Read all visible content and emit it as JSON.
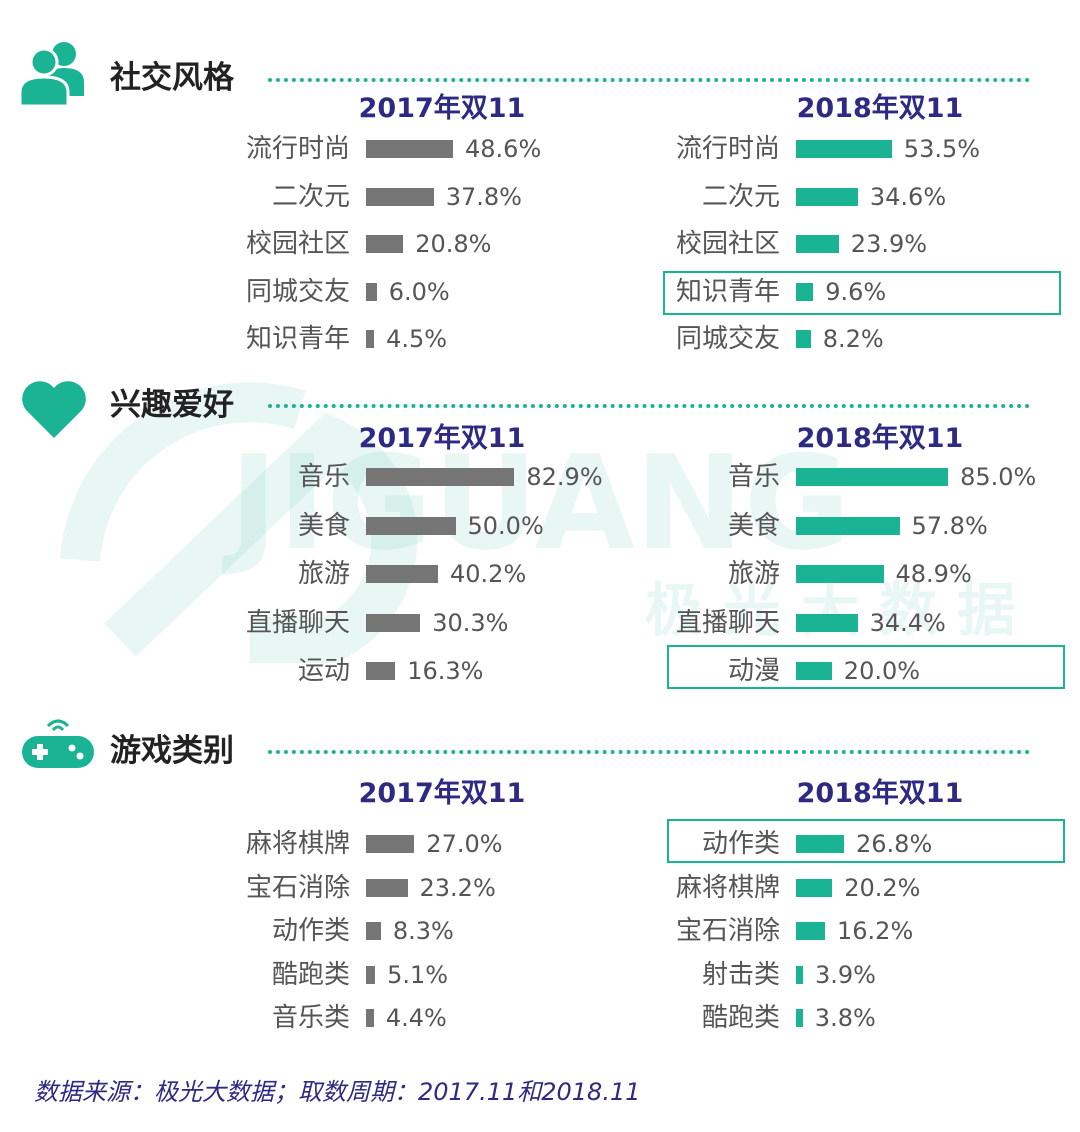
{
  "colors": {
    "teal": "#1ab394",
    "gray": "#757575",
    "heading": "#2e2a84",
    "title": "#222222"
  },
  "watermark": {
    "brand": "JIGUANG",
    "subtitle": "极 光 大 数 据"
  },
  "footer": "数据来源：极光大数据；取数周期：2017.11和2018.11",
  "chart_data": [
    {
      "type": "bar",
      "title": "社交风格",
      "icon": "users-icon",
      "xlim": [
        0,
        100
      ],
      "columns": [
        {
          "heading": "2017年双11",
          "categories": [
            "流行时尚",
            "二次元",
            "校园社区",
            "同城交友",
            "知识青年"
          ],
          "values": [
            48.6,
            37.8,
            20.8,
            6.0,
            4.5
          ],
          "labels": [
            "48.6%",
            "37.8%",
            "20.8%",
            "6.0%",
            "4.5%"
          ],
          "color": "#757575",
          "highlight": null
        },
        {
          "heading": "2018年双11",
          "categories": [
            "流行时尚",
            "二次元",
            "校园社区",
            "知识青年",
            "同城交友"
          ],
          "values": [
            53.5,
            34.6,
            23.9,
            9.6,
            8.2
          ],
          "labels": [
            "53.5%",
            "34.6%",
            "23.9%",
            "9.6%",
            "8.2%"
          ],
          "color": "#1ab394",
          "highlight": "知识青年"
        }
      ]
    },
    {
      "type": "bar",
      "title": "兴趣爱好",
      "icon": "heart-icon",
      "xlim": [
        0,
        100
      ],
      "columns": [
        {
          "heading": "2017年双11",
          "categories": [
            "音乐",
            "美食",
            "旅游",
            "直播聊天",
            "运动"
          ],
          "values": [
            82.9,
            50.0,
            40.2,
            30.3,
            16.3
          ],
          "labels": [
            "82.9%",
            "50.0%",
            "40.2%",
            "30.3%",
            "16.3%"
          ],
          "color": "#757575",
          "highlight": null
        },
        {
          "heading": "2018年双11",
          "categories": [
            "音乐",
            "美食",
            "旅游",
            "直播聊天",
            "动漫"
          ],
          "values": [
            85.0,
            57.8,
            48.9,
            34.4,
            20.0
          ],
          "labels": [
            "85.0%",
            "57.8%",
            "48.9%",
            "34.4%",
            "20.0%"
          ],
          "color": "#1ab394",
          "highlight": "动漫"
        }
      ]
    },
    {
      "type": "bar",
      "title": "游戏类别",
      "icon": "gamepad-icon",
      "xlim": [
        0,
        100
      ],
      "columns": [
        {
          "heading": "2017年双11",
          "categories": [
            "麻将棋牌",
            "宝石消除",
            "动作类",
            "酷跑类",
            "音乐类"
          ],
          "values": [
            27.0,
            23.2,
            8.3,
            5.1,
            4.4
          ],
          "labels": [
            "27.0%",
            "23.2%",
            "8.3%",
            "5.1%",
            "4.4%"
          ],
          "color": "#757575",
          "highlight": null
        },
        {
          "heading": "2018年双11",
          "categories": [
            "动作类",
            "麻将棋牌",
            "宝石消除",
            "射击类",
            "酷跑类"
          ],
          "values": [
            26.8,
            20.2,
            16.2,
            3.9,
            3.8
          ],
          "labels": [
            "26.8%",
            "20.2%",
            "16.2%",
            "3.9%",
            "3.8%"
          ],
          "color": "#1ab394",
          "highlight": "动作类"
        }
      ]
    }
  ]
}
